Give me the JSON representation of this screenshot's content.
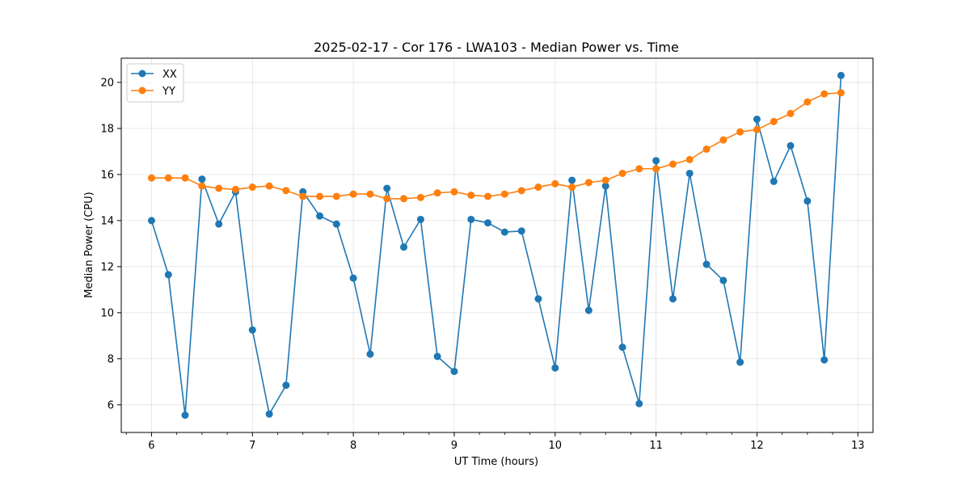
{
  "chart_data": {
    "type": "line",
    "title": "2025-02-17 - Cor 176 - LWA103 - Median Power vs. Time",
    "xlabel": "UT Time (hours)",
    "ylabel": "Median Power (CPU)",
    "xlim": [
      5.7,
      13.15
    ],
    "ylim": [
      4.8,
      21.05
    ],
    "xticks": [
      6,
      7,
      8,
      9,
      10,
      11,
      12,
      13
    ],
    "xtick_labels": [
      "6",
      "7",
      "8",
      "9",
      "10",
      "11",
      "12",
      "13"
    ],
    "yticks": [
      6,
      8,
      10,
      12,
      14,
      16,
      18,
      20
    ],
    "ytick_labels": [
      "6",
      "8",
      "10",
      "12",
      "14",
      "16",
      "18",
      "20"
    ],
    "grid": true,
    "legend_position": "top-left",
    "x": [
      6.0,
      6.167,
      6.333,
      6.5,
      6.667,
      6.833,
      7.0,
      7.167,
      7.333,
      7.5,
      7.667,
      7.833,
      8.0,
      8.167,
      8.333,
      8.5,
      8.667,
      8.833,
      9.0,
      9.167,
      9.333,
      9.5,
      9.667,
      9.833,
      10.0,
      10.167,
      10.333,
      10.5,
      10.667,
      10.833,
      11.0,
      11.167,
      11.333,
      11.5,
      11.667,
      11.833,
      12.0,
      12.167,
      12.333,
      12.5,
      12.667,
      12.833
    ],
    "series": [
      {
        "name": "XX",
        "color": "#1f77b4",
        "values": [
          14.0,
          11.65,
          5.55,
          15.8,
          13.85,
          15.25,
          9.25,
          5.6,
          6.85,
          15.25,
          14.2,
          13.85,
          11.5,
          8.2,
          15.4,
          12.85,
          14.05,
          8.1,
          7.45,
          14.05,
          13.9,
          13.5,
          13.55,
          10.6,
          7.6,
          15.75,
          10.1,
          15.5,
          8.5,
          6.05,
          16.6,
          10.6,
          16.05,
          12.1,
          11.4,
          7.85,
          18.4,
          15.7,
          17.25,
          14.85,
          7.95,
          20.3
        ]
      },
      {
        "name": "YY",
        "color": "#ff7f0e",
        "values": [
          15.85,
          15.85,
          15.85,
          15.5,
          15.4,
          15.35,
          15.45,
          15.5,
          15.3,
          15.05,
          15.05,
          15.05,
          15.15,
          15.15,
          14.95,
          14.95,
          15.0,
          15.2,
          15.25,
          15.1,
          15.05,
          15.15,
          15.3,
          15.45,
          15.6,
          15.45,
          15.65,
          15.75,
          16.05,
          16.25,
          16.25,
          16.45,
          16.65,
          17.1,
          17.5,
          17.85,
          17.95,
          18.3,
          18.65,
          19.15,
          19.5,
          19.55
        ]
      }
    ]
  }
}
